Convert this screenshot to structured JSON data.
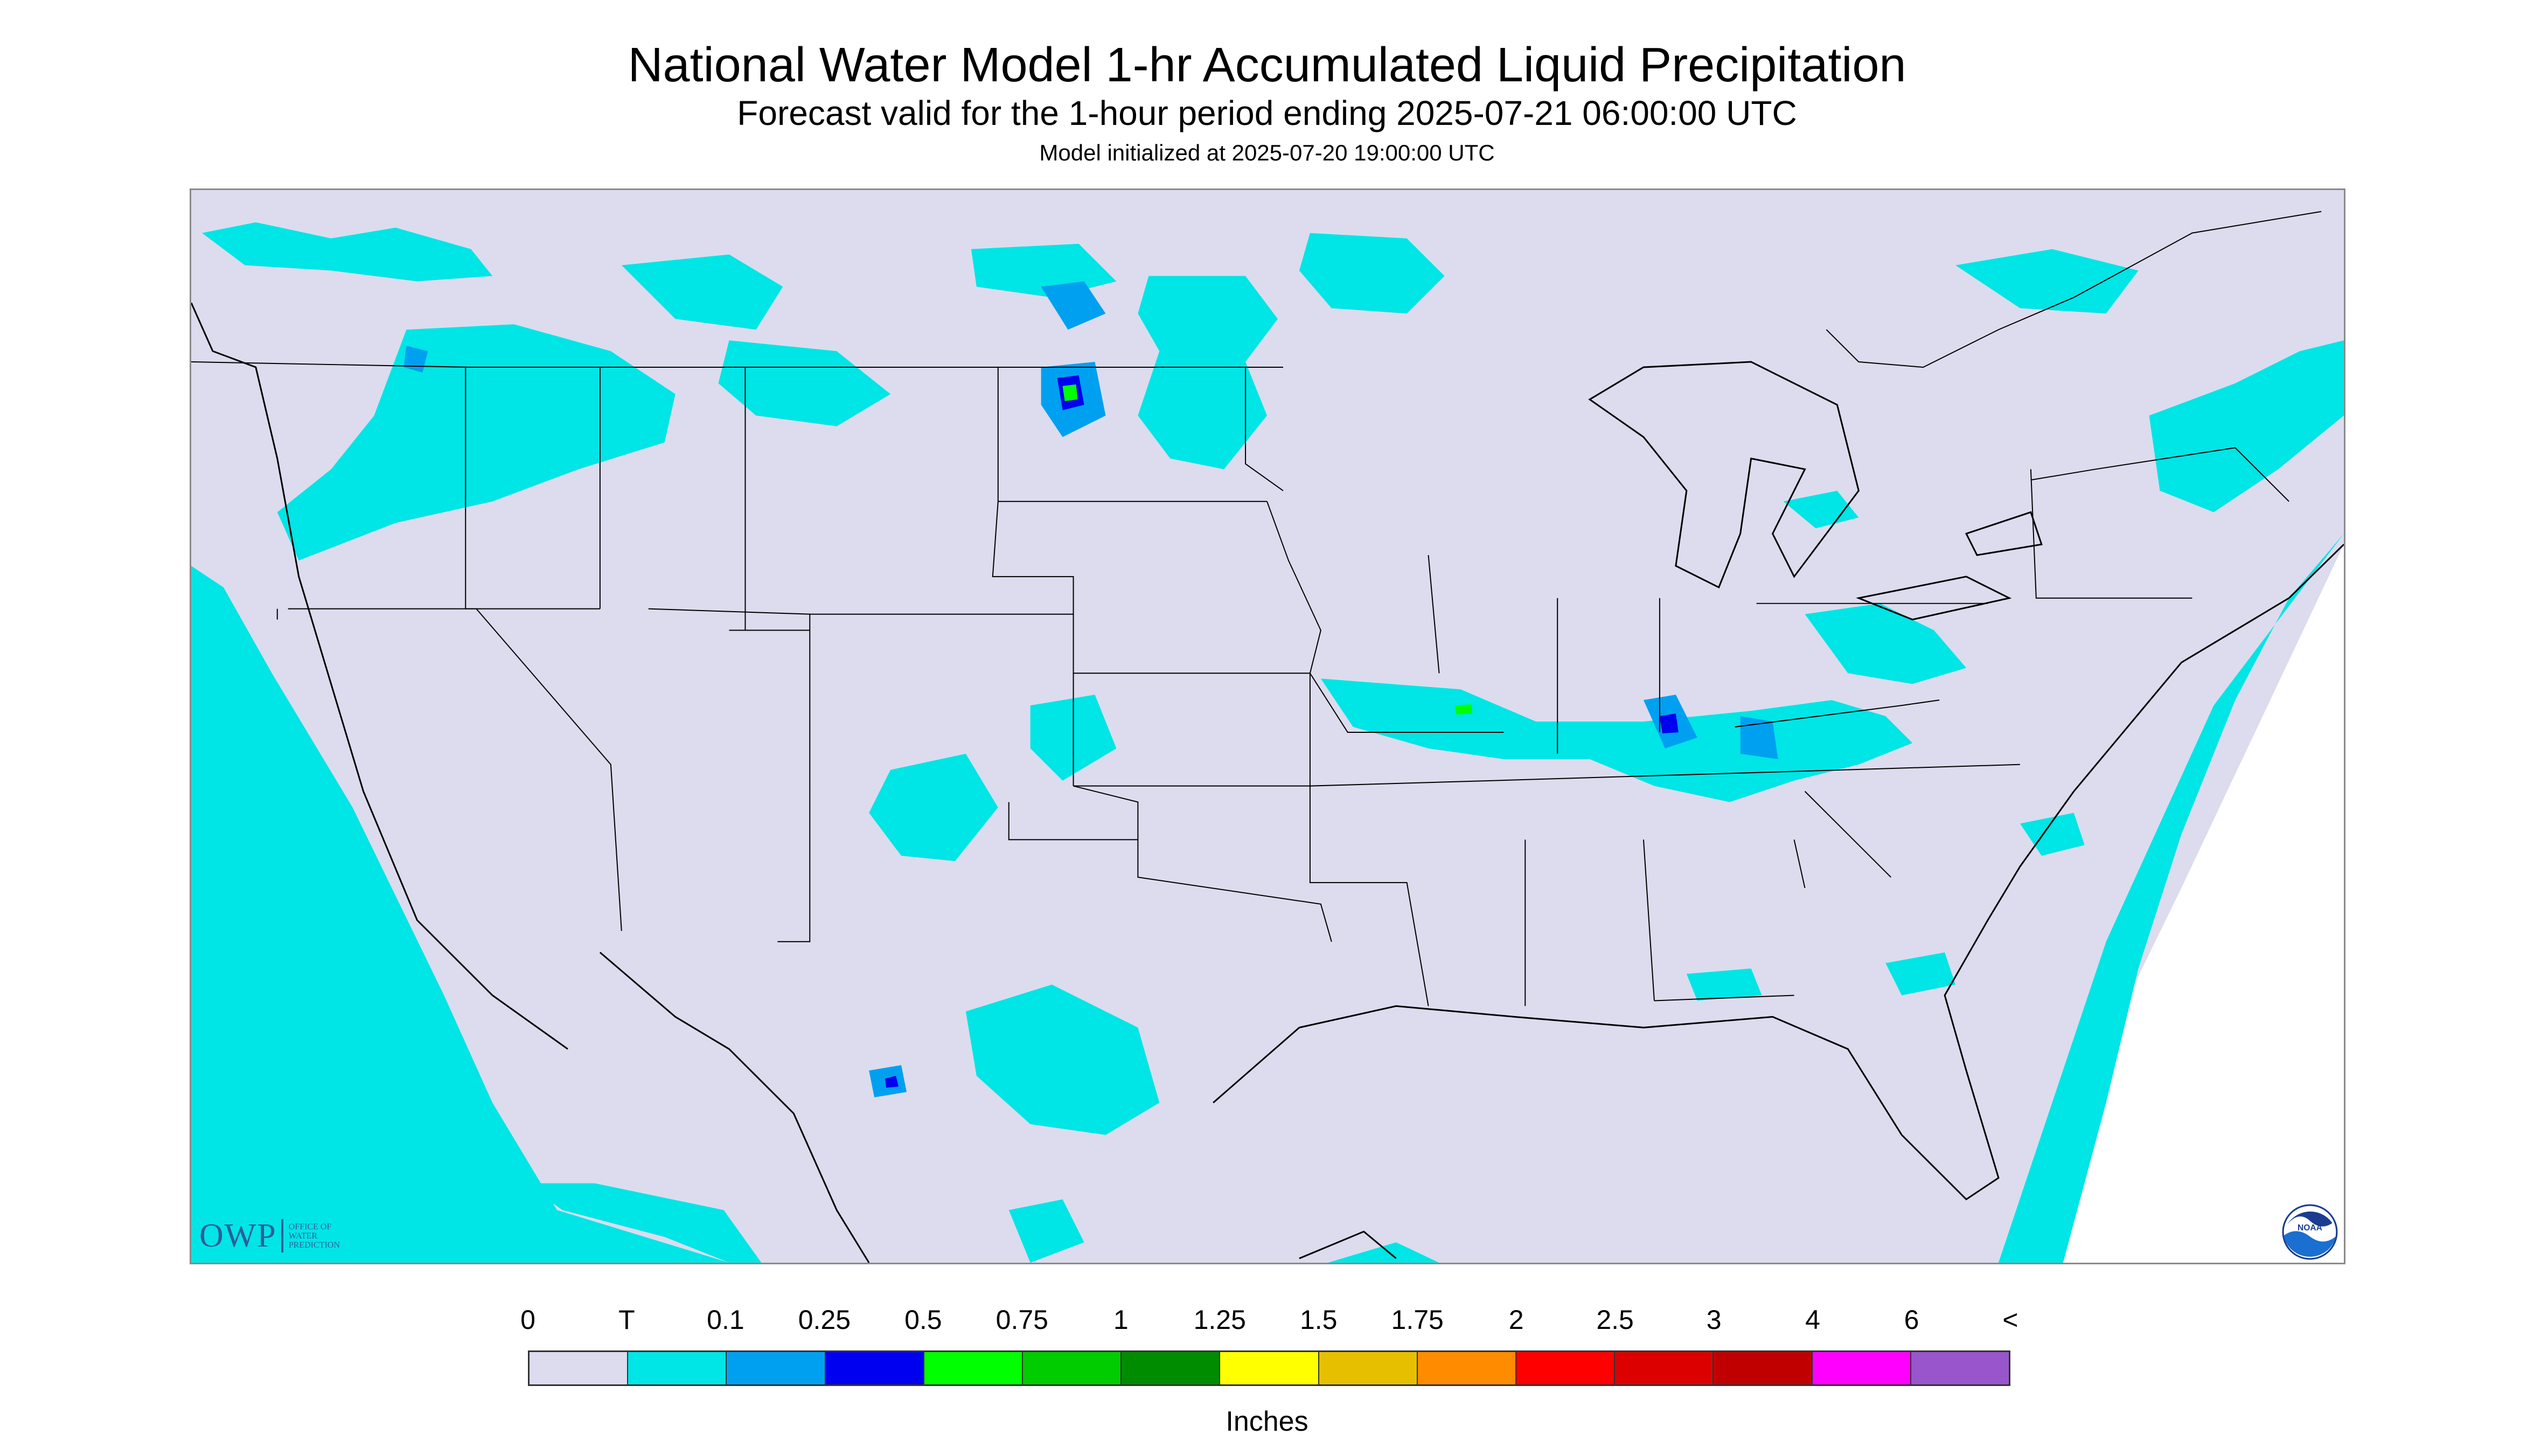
{
  "header": {
    "title": "National Water Model 1-hr Accumulated Liquid Precipitation",
    "subtitle": "Forecast valid for the 1-hour period ending 2025-07-21 06:00:00 UTC",
    "init_line": "Model initialized at 2025-07-20 19:00:00 UTC"
  },
  "map": {
    "background_color": "#dcdcee",
    "trace_color": "#00e5e5",
    "border_color": "#000000"
  },
  "logos": {
    "owp_letters": "OWP",
    "owp_line1": "OFFICE OF",
    "owp_line2": "WATER",
    "owp_line3": "PREDICTION",
    "noaa_text": "NOAA"
  },
  "legend": {
    "labels": [
      "0",
      "T",
      "0.1",
      "0.25",
      "0.5",
      "0.75",
      "1",
      "1.25",
      "1.5",
      "1.75",
      "2",
      "2.5",
      "3",
      "4",
      "6",
      "<"
    ],
    "colors": [
      "#dcdcee",
      "#00e5e5",
      "#00a0f0",
      "#0000f0",
      "#00ff00",
      "#00cc00",
      "#008c00",
      "#ffff00",
      "#e6c000",
      "#ff8c00",
      "#ff0000",
      "#dc0000",
      "#c00000",
      "#ff00ff",
      "#9955cc"
    ],
    "units": "Inches"
  }
}
